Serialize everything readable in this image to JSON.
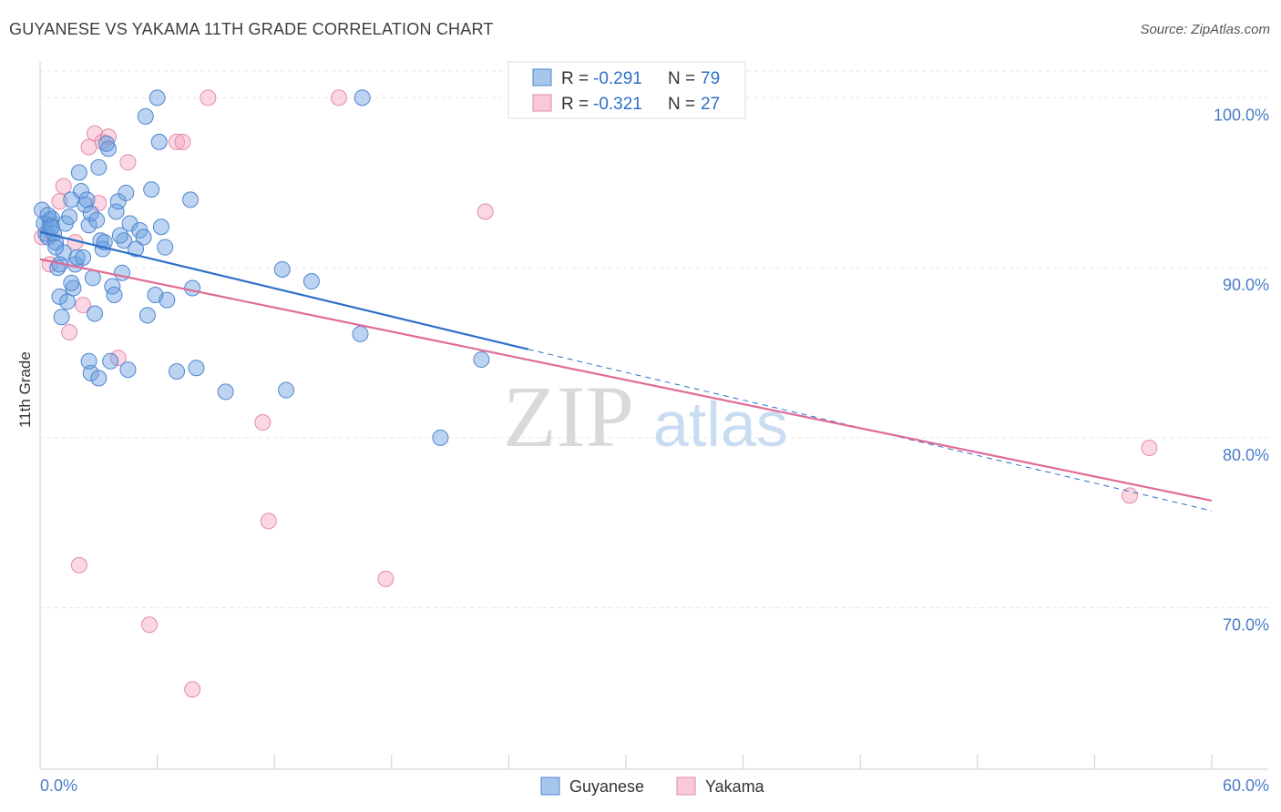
{
  "title": "GUYANESE VS YAKAMA 11TH GRADE CORRELATION CHART",
  "source": "Source: ZipAtlas.com",
  "watermark": {
    "zip": "ZIP",
    "atlas": "atlas"
  },
  "colors": {
    "blue": "#6aa0e0",
    "blue_line": "#2e6fc9",
    "pink": "#f3a6c0",
    "pink_line": "#e06b96",
    "axis_text": "#4a7cc7"
  },
  "chart_data": {
    "type": "scatter",
    "title": "GUYANESE VS YAKAMA 11TH GRADE CORRELATION CHART",
    "xlabel": "",
    "ylabel": "11th Grade",
    "xlim": [
      0,
      60
    ],
    "ylim": [
      60.5,
      102
    ],
    "x_ticks": [
      "0.0%",
      "60.0%"
    ],
    "y_ticks": [
      {
        "value": 100,
        "label": "100.0%"
      },
      {
        "value": 90,
        "label": "90.0%"
      },
      {
        "value": 80,
        "label": "80.0%"
      },
      {
        "value": 70,
        "label": "70.0%"
      }
    ],
    "grid": true,
    "legend_position": "top-center",
    "series": [
      {
        "name": "Guyanese",
        "r_label": "R =",
        "r": "-0.291",
        "n_label": "N =",
        "n": "79",
        "trend": {
          "x0": 0,
          "y0": 92.1,
          "x1": 25,
          "y1": 85.2,
          "x_dash_end": 60,
          "y_dash_end": 75.7
        },
        "points": [
          [
            0.1,
            93.4
          ],
          [
            0.2,
            92.6
          ],
          [
            0.3,
            92.0
          ],
          [
            0.4,
            91.8
          ],
          [
            0.5,
            92.8
          ],
          [
            0.6,
            92.9
          ],
          [
            0.7,
            92.0
          ],
          [
            0.8,
            91.5
          ],
          [
            0.9,
            90.0
          ],
          [
            1.0,
            88.3
          ],
          [
            1.1,
            87.1
          ],
          [
            1.2,
            90.9
          ],
          [
            1.3,
            92.6
          ],
          [
            1.4,
            88.0
          ],
          [
            1.5,
            93.0
          ],
          [
            1.6,
            94.0
          ],
          [
            1.7,
            88.8
          ],
          [
            1.8,
            90.2
          ],
          [
            1.9,
            90.6
          ],
          [
            2.0,
            95.6
          ],
          [
            2.1,
            94.5
          ],
          [
            2.2,
            90.6
          ],
          [
            2.3,
            93.7
          ],
          [
            2.4,
            94.0
          ],
          [
            2.5,
            92.5
          ],
          [
            2.6,
            93.2
          ],
          [
            2.7,
            89.4
          ],
          [
            2.8,
            87.3
          ],
          [
            2.9,
            92.8
          ],
          [
            3.0,
            95.9
          ],
          [
            3.1,
            91.6
          ],
          [
            3.2,
            91.1
          ],
          [
            3.3,
            91.5
          ],
          [
            3.5,
            97.0
          ],
          [
            3.6,
            84.5
          ],
          [
            3.7,
            88.9
          ],
          [
            3.8,
            88.4
          ],
          [
            3.9,
            93.3
          ],
          [
            4.0,
            93.9
          ],
          [
            4.2,
            89.7
          ],
          [
            4.3,
            91.6
          ],
          [
            4.4,
            94.4
          ],
          [
            4.6,
            92.6
          ],
          [
            4.9,
            91.1
          ],
          [
            5.1,
            92.2
          ],
          [
            5.3,
            91.8
          ],
          [
            5.5,
            87.2
          ],
          [
            5.7,
            94.6
          ],
          [
            5.9,
            88.4
          ],
          [
            6.1,
            97.4
          ],
          [
            6.2,
            92.4
          ],
          [
            6.4,
            91.2
          ],
          [
            6.5,
            88.1
          ],
          [
            7.0,
            83.9
          ],
          [
            7.7,
            94.0
          ],
          [
            7.8,
            88.8
          ],
          [
            8.0,
            84.1
          ],
          [
            9.5,
            82.7
          ],
          [
            12.4,
            89.9
          ],
          [
            12.6,
            82.8
          ],
          [
            13.9,
            89.2
          ],
          [
            16.4,
            86.1
          ],
          [
            20.5,
            80.0
          ],
          [
            22.6,
            84.6
          ],
          [
            4.5,
            84.0
          ],
          [
            2.6,
            83.8
          ],
          [
            3.0,
            83.5
          ],
          [
            5.4,
            98.9
          ],
          [
            6.0,
            100.0
          ],
          [
            16.5,
            100.0
          ],
          [
            2.5,
            84.5
          ],
          [
            1.0,
            90.2
          ],
          [
            0.5,
            92.5
          ],
          [
            3.4,
            97.3
          ],
          [
            0.8,
            91.2
          ],
          [
            4.1,
            91.9
          ],
          [
            0.4,
            93.1
          ],
          [
            0.6,
            92.4
          ],
          [
            1.6,
            89.1
          ]
        ]
      },
      {
        "name": "Yakama",
        "r_label": "R =",
        "r": "-0.321",
        "n_label": "N =",
        "n": "27",
        "trend": {
          "x0": 0,
          "y0": 90.5,
          "x1": 60,
          "y1": 76.3
        },
        "points": [
          [
            0.1,
            91.8
          ],
          [
            0.5,
            90.2
          ],
          [
            1.0,
            93.9
          ],
          [
            1.2,
            94.8
          ],
          [
            1.5,
            86.2
          ],
          [
            2.0,
            72.5
          ],
          [
            2.2,
            87.8
          ],
          [
            2.5,
            97.1
          ],
          [
            2.8,
            97.9
          ],
          [
            3.0,
            93.8
          ],
          [
            3.2,
            97.4
          ],
          [
            3.5,
            97.7
          ],
          [
            4.0,
            84.7
          ],
          [
            4.5,
            96.2
          ],
          [
            5.6,
            69.0
          ],
          [
            7.0,
            97.4
          ],
          [
            7.3,
            97.4
          ],
          [
            7.8,
            65.2
          ],
          [
            8.6,
            100.0
          ],
          [
            11.4,
            80.9
          ],
          [
            11.7,
            75.1
          ],
          [
            15.3,
            100.0
          ],
          [
            17.7,
            71.7
          ],
          [
            22.8,
            93.3
          ],
          [
            56.8,
            79.4
          ],
          [
            55.8,
            76.6
          ],
          [
            1.8,
            91.5
          ]
        ]
      }
    ]
  }
}
